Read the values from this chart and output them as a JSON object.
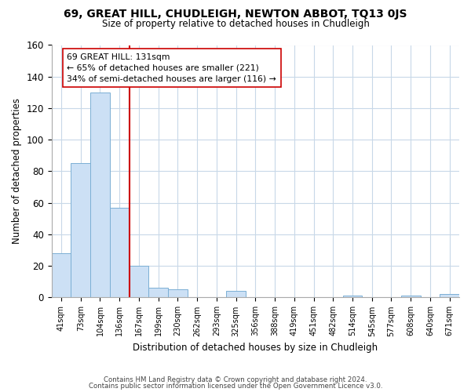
{
  "title": "69, GREAT HILL, CHUDLEIGH, NEWTON ABBOT, TQ13 0JS",
  "subtitle": "Size of property relative to detached houses in Chudleigh",
  "xlabel": "Distribution of detached houses by size in Chudleigh",
  "ylabel": "Number of detached properties",
  "footer_line1": "Contains HM Land Registry data © Crown copyright and database right 2024.",
  "footer_line2": "Contains public sector information licensed under the Open Government Licence v3.0.",
  "bar_labels": [
    "41sqm",
    "73sqm",
    "104sqm",
    "136sqm",
    "167sqm",
    "199sqm",
    "230sqm",
    "262sqm",
    "293sqm",
    "325sqm",
    "356sqm",
    "388sqm",
    "419sqm",
    "451sqm",
    "482sqm",
    "514sqm",
    "545sqm",
    "577sqm",
    "608sqm",
    "640sqm",
    "671sqm"
  ],
  "bar_values": [
    28,
    85,
    130,
    57,
    20,
    6,
    5,
    0,
    0,
    4,
    0,
    0,
    0,
    0,
    0,
    1,
    0,
    0,
    1,
    0,
    2
  ],
  "bar_color": "#cce0f5",
  "bar_edge_color": "#7bafd4",
  "vline_color": "#cc0000",
  "annotation_title": "69 GREAT HILL: 131sqm",
  "annotation_line1": "← 65% of detached houses are smaller (221)",
  "annotation_line2": "34% of semi-detached houses are larger (116) →",
  "annotation_box_color": "#ffffff",
  "annotation_box_edgecolor": "#cc0000",
  "ylim": [
    0,
    160
  ],
  "yticks": [
    0,
    20,
    40,
    60,
    80,
    100,
    120,
    140,
    160
  ],
  "background_color": "#ffffff",
  "grid_color": "#c8d8e8"
}
